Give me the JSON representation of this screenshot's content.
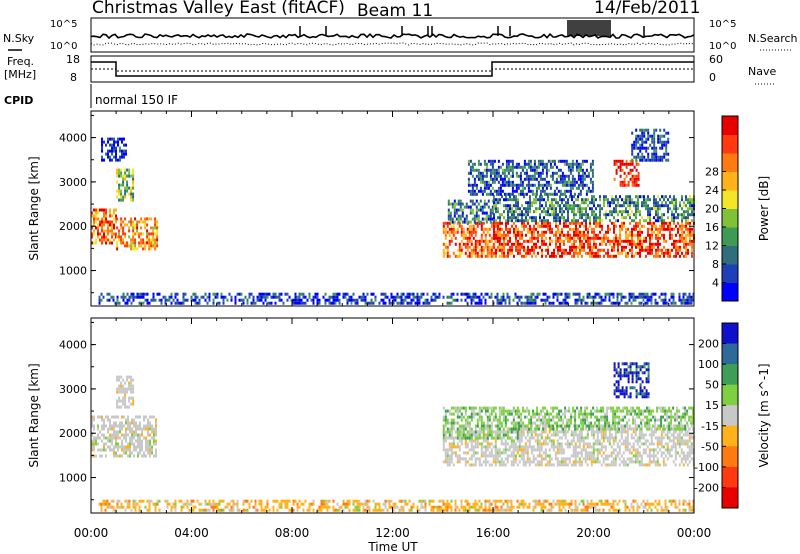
{
  "header": {
    "title": "Christmas Valley East (fitACF)",
    "beam": "Beam 11",
    "date": "14/Feb/2011"
  },
  "strip": {
    "nsky_label": "N.Sky",
    "nsearch_label": "N.Search",
    "noise_ticks_left": [
      "10^5",
      "10^0"
    ],
    "noise_ticks_right": [
      "10^5",
      "10^0"
    ],
    "freq_label": "Freq.",
    "freq_unit": "[MHz]",
    "freq_ticks": [
      "18",
      "8"
    ],
    "nave_label": "Nave",
    "nave_ticks": [
      "60",
      "0"
    ],
    "cpid_label": "CPID",
    "cpid_value": "normal 150 IF"
  },
  "chart_data": [
    {
      "type": "heatmap",
      "name": "power-panel",
      "ylabel": "Slant Range [km]",
      "xlabel": "Time UT",
      "x_ticks": [
        "00:00",
        "04:00",
        "08:00",
        "12:00",
        "16:00",
        "20:00",
        "00:00"
      ],
      "y_ticks": [
        "1000",
        "2000",
        "3000",
        "4000"
      ],
      "ylim": [
        200,
        4600
      ],
      "xlim_hours": [
        0,
        24
      ],
      "colorbar": {
        "label": "Power [dB]",
        "ticks": [
          "4",
          "8",
          "12",
          "16",
          "20",
          "24",
          "28"
        ],
        "colors": [
          "#0000ff",
          "#1e3fb8",
          "#2f6e7a",
          "#3f9a55",
          "#7fc23a",
          "#f2e52a",
          "#ffb21a",
          "#ff7a10",
          "#ff3a10",
          "#e80000"
        ]
      },
      "regions": [
        {
          "t": [
            0.0,
            1.0
          ],
          "r": [
            1600,
            2400
          ],
          "level": 0.75
        },
        {
          "t": [
            1.0,
            2.6
          ],
          "r": [
            1500,
            2200
          ],
          "level": 0.7
        },
        {
          "t": [
            1.0,
            1.7
          ],
          "r": [
            2600,
            3300
          ],
          "level": 0.45
        },
        {
          "t": [
            0.4,
            1.4
          ],
          "r": [
            3500,
            4000
          ],
          "level": 0.1
        },
        {
          "t": [
            0.3,
            24.0
          ],
          "r": [
            250,
            500
          ],
          "level": 0.15
        },
        {
          "t": [
            14.0,
            16.3
          ],
          "r": [
            1300,
            2100
          ],
          "level": 0.8
        },
        {
          "t": [
            14.2,
            16.0
          ],
          "r": [
            2100,
            2600
          ],
          "level": 0.25
        },
        {
          "t": [
            16.0,
            24.0
          ],
          "r": [
            1300,
            2100
          ],
          "level": 0.85
        },
        {
          "t": [
            16.0,
            24.0
          ],
          "r": [
            2100,
            2700
          ],
          "level": 0.3
        },
        {
          "t": [
            15.0,
            20.0
          ],
          "r": [
            2700,
            3500
          ],
          "level": 0.2
        },
        {
          "t": [
            20.8,
            21.8
          ],
          "r": [
            2900,
            3500
          ],
          "level": 0.95
        },
        {
          "t": [
            21.5,
            23.0
          ],
          "r": [
            3500,
            4200
          ],
          "level": 0.15
        }
      ]
    },
    {
      "type": "heatmap",
      "name": "velocity-panel",
      "ylabel": "Slant Range [km]",
      "xlabel": "Time UT",
      "x_ticks": [
        "00:00",
        "04:00",
        "08:00",
        "12:00",
        "16:00",
        "20:00",
        "00:00"
      ],
      "y_ticks": [
        "1000",
        "2000",
        "3000",
        "4000"
      ],
      "ylim": [
        200,
        4600
      ],
      "xlim_hours": [
        0,
        24
      ],
      "colorbar": {
        "label": "Velocity [m s^-1]",
        "ticks": [
          "200",
          "100",
          "50",
          "15",
          "-15",
          "-50",
          "-100",
          "-200"
        ],
        "colors": [
          "#1010cc",
          "#2d6a9a",
          "#3f9e55",
          "#7fd040",
          "#c8c8c8",
          "#ffb21a",
          "#ff7a10",
          "#ff3a10",
          "#e80000"
        ]
      },
      "regions": [
        {
          "t": [
            0.0,
            2.6
          ],
          "r": [
            1500,
            2400
          ],
          "level": "ground"
        },
        {
          "t": [
            1.0,
            1.7
          ],
          "r": [
            2600,
            3300
          ],
          "level": "ground"
        },
        {
          "t": [
            0.3,
            24.0
          ],
          "r": [
            250,
            500
          ],
          "level": "neg"
        },
        {
          "t": [
            14.0,
            24.0
          ],
          "r": [
            1300,
            2200
          ],
          "level": "ground"
        },
        {
          "t": [
            14.0,
            17.0
          ],
          "r": [
            1900,
            2600
          ],
          "level": "pos"
        },
        {
          "t": [
            17.0,
            24.0
          ],
          "r": [
            2100,
            2600
          ],
          "level": "pos"
        },
        {
          "t": [
            20.8,
            22.2
          ],
          "r": [
            2800,
            3600
          ],
          "level": "strongpos"
        }
      ]
    }
  ]
}
